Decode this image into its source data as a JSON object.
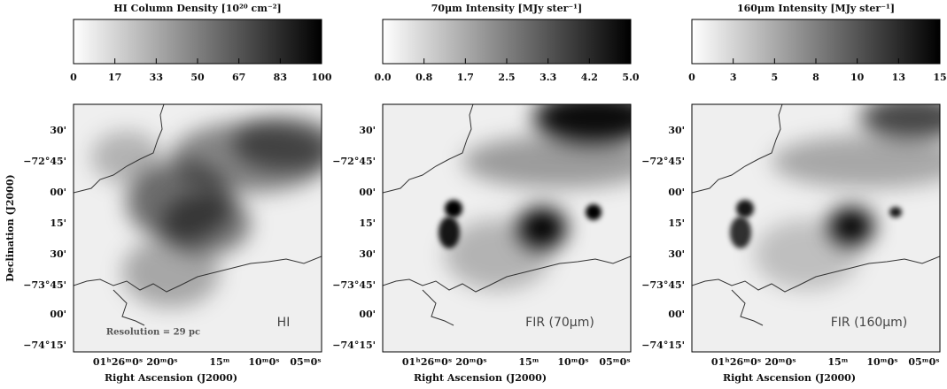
{
  "panels": [
    {
      "colorbar_title": "HI Column Density [10²⁰ cm⁻²]",
      "colorbar_ticks": [
        "0",
        "17",
        "33",
        "50",
        "67",
        "83",
        "100"
      ],
      "label": "HI",
      "note": "Resolution = 29 pc"
    },
    {
      "colorbar_title": "70μm Intensity [MJy ster⁻¹]",
      "colorbar_ticks": [
        "0.0",
        "0.8",
        "1.7",
        "2.5",
        "3.3",
        "4.2",
        "5.0"
      ],
      "label": "FIR (70μm)"
    },
    {
      "colorbar_title": "160μm Intensity [MJy ster⁻¹]",
      "colorbar_ticks": [
        "0",
        "3",
        "5",
        "8",
        "10",
        "13",
        "15"
      ],
      "label": "FIR (160μm)"
    }
  ],
  "y_axis": {
    "title": "Declination (J2000)",
    "ticks": [
      "30'",
      "−72°45'",
      "00'",
      "15'",
      "30'",
      "−73°45'",
      "00'",
      "−74°15'"
    ]
  },
  "x_axis": {
    "title": "Right Ascension (J2000)",
    "ticks": [
      "01ʰ26ᵐ0ˢ",
      "20ᵐ0ˢ",
      "15ᵐ",
      "10ᵐ0ˢ",
      "05ᵐ0ˢ"
    ]
  }
}
